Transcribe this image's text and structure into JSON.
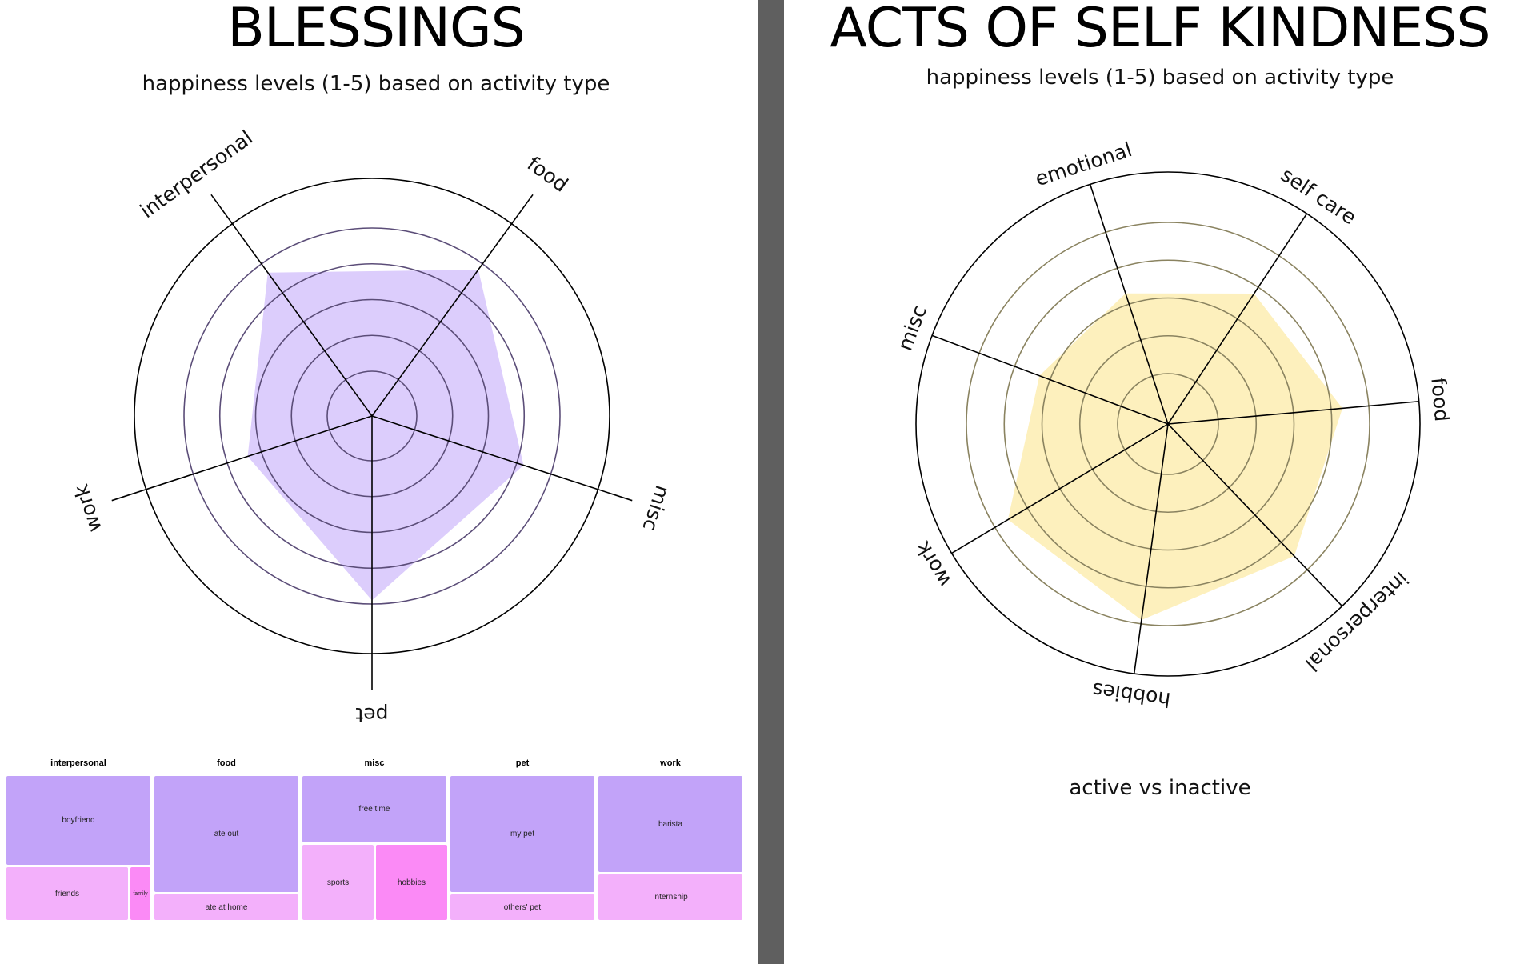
{
  "colors": {
    "blessings_fill": "#dccdfc",
    "kindness_fill": "#fdf0bd",
    "treemap_primary": "#c2a3f9",
    "treemap_secondary": "#f3b0fb",
    "treemap_accent": "#fb8af6",
    "divider": "#5f5f5f"
  },
  "chart_data": [
    {
      "type": "radar",
      "title": "BLESSINGS",
      "subtitle": "happiness levels (1-5) based on activity type",
      "scale": [
        1,
        5
      ],
      "axes": [
        "interpersonal",
        "food",
        "misc",
        "pet",
        "work"
      ],
      "values": [
        4.7,
        4.8,
        4.2,
        4.9,
        3.4
      ],
      "grid": true
    },
    {
      "type": "radar",
      "title": "ACTS OF SELF KINDNESS",
      "subtitle": "happiness levels (1-5) based on activity type",
      "footer": "active vs inactive",
      "scale": [
        1,
        5
      ],
      "axes": [
        "emotional",
        "self care",
        "food",
        "interpersonal",
        "hobbies",
        "work",
        "misc"
      ],
      "values": [
        3.3,
        3.8,
        4.3,
        4.5,
        4.9,
        4.6,
        3.3
      ],
      "grid": true
    },
    {
      "type": "treemap",
      "groups": [
        {
          "name": "interpersonal",
          "items": [
            {
              "label": "boyfriend",
              "value": 6
            },
            {
              "label": "friends",
              "value": 3
            },
            {
              "label": "family",
              "value": 0.5
            }
          ]
        },
        {
          "name": "food",
          "items": [
            {
              "label": "ate out",
              "value": 7
            },
            {
              "label": "ate at home",
              "value": 1.5
            }
          ]
        },
        {
          "name": "misc",
          "items": [
            {
              "label": "free time",
              "value": 4
            },
            {
              "label": "sports",
              "value": 2.2
            },
            {
              "label": "hobbies",
              "value": 2.2
            }
          ]
        },
        {
          "name": "pet",
          "items": [
            {
              "label": "my pet",
              "value": 7
            },
            {
              "label": "others' pet",
              "value": 1.5
            }
          ]
        },
        {
          "name": "work",
          "items": [
            {
              "label": "barista",
              "value": 6
            },
            {
              "label": "internship",
              "value": 2.8
            }
          ]
        }
      ]
    }
  ]
}
